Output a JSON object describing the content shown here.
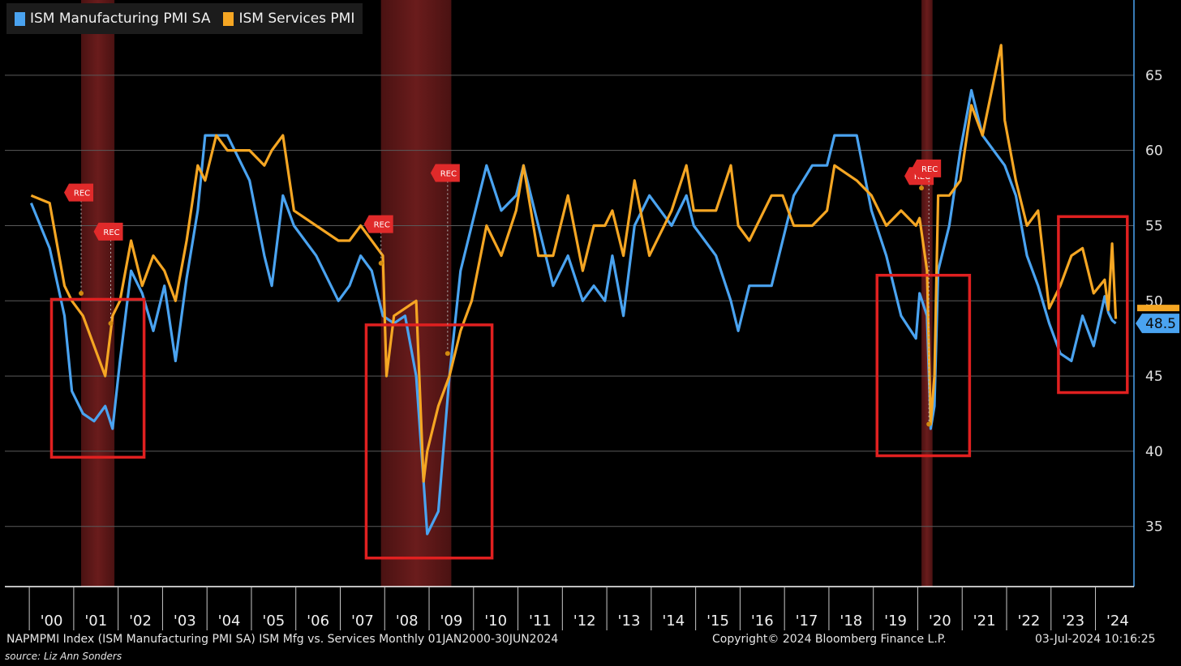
{
  "legend": {
    "items": [
      {
        "label": "ISM Manufacturing PMI SA",
        "color": "#4aa3f0"
      },
      {
        "label": "ISM Services PMI",
        "color": "#f5a623"
      }
    ]
  },
  "footer": {
    "left": "NAPMPMI Index (ISM Manufacturing PMI SA) ISM Mfg vs. Services  Monthly 01JAN2000-30JUN2024",
    "center": "Copyright© 2024 Bloomberg Finance L.P.",
    "right": "03-Jul-2024 10:16:25",
    "source": "source: Liz Ann Sonders"
  },
  "chart_data": {
    "type": "line",
    "x_range": [
      "2000-01",
      "2024-06"
    ],
    "ylim": [
      31,
      70
    ],
    "y_ticks": [
      35,
      40,
      45,
      50,
      55,
      60,
      65
    ],
    "x_tick_labels": [
      "'00",
      "'01",
      "'02",
      "'03",
      "'04",
      "'05",
      "'06",
      "'07",
      "'08",
      "'09",
      "'10",
      "'11",
      "'12",
      "'13",
      "'14",
      "'15",
      "'16",
      "'17",
      "'18",
      "'19",
      "'20",
      "'21",
      "'22",
      "'23",
      "'24"
    ],
    "grid": true,
    "legend_position": "top-left",
    "last_value_label": "48.5",
    "recession_shading": [
      {
        "start": "2001-03",
        "end": "2001-11"
      },
      {
        "start": "2007-12",
        "end": "2009-06"
      },
      {
        "start": "2020-02",
        "end": "2020-04"
      }
    ],
    "rec_flags": [
      "REC",
      "REC",
      "REC",
      "REC",
      "REC",
      "REC"
    ],
    "series": [
      {
        "name": "ISM Manufacturing PMI SA",
        "color": "#4aa3f0",
        "points": [
          [
            "2000-01",
            56.5
          ],
          [
            "2000-06",
            53.5
          ],
          [
            "2000-10",
            49
          ],
          [
            "2000-12",
            44
          ],
          [
            "2001-03",
            42.5
          ],
          [
            "2001-06",
            42
          ],
          [
            "2001-09",
            43
          ],
          [
            "2001-11",
            41.5
          ],
          [
            "2002-01",
            46
          ],
          [
            "2002-04",
            52
          ],
          [
            "2002-07",
            50.5
          ],
          [
            "2002-10",
            48
          ],
          [
            "2003-01",
            51
          ],
          [
            "2003-04",
            46
          ],
          [
            "2003-07",
            51.5
          ],
          [
            "2003-10",
            56
          ],
          [
            "2003-12",
            61
          ],
          [
            "2004-06",
            61
          ],
          [
            "2004-12",
            58
          ],
          [
            "2005-04",
            53
          ],
          [
            "2005-06",
            51
          ],
          [
            "2005-09",
            57
          ],
          [
            "2005-12",
            55
          ],
          [
            "2006-06",
            53
          ],
          [
            "2006-12",
            50
          ],
          [
            "2007-03",
            51
          ],
          [
            "2007-06",
            53
          ],
          [
            "2007-09",
            52
          ],
          [
            "2007-12",
            49
          ],
          [
            "2008-03",
            48.5
          ],
          [
            "2008-06",
            49
          ],
          [
            "2008-09",
            45
          ],
          [
            "2008-11",
            38
          ],
          [
            "2008-12",
            34.5
          ],
          [
            "2009-03",
            36
          ],
          [
            "2009-06",
            45
          ],
          [
            "2009-09",
            52
          ],
          [
            "2009-12",
            55
          ],
          [
            "2010-04",
            59
          ],
          [
            "2010-08",
            56
          ],
          [
            "2010-12",
            57
          ],
          [
            "2011-02",
            59
          ],
          [
            "2011-06",
            55
          ],
          [
            "2011-10",
            51
          ],
          [
            "2012-02",
            53
          ],
          [
            "2012-06",
            50
          ],
          [
            "2012-09",
            51
          ],
          [
            "2012-12",
            50
          ],
          [
            "2013-02",
            53
          ],
          [
            "2013-05",
            49
          ],
          [
            "2013-08",
            55
          ],
          [
            "2013-12",
            57
          ],
          [
            "2014-06",
            55
          ],
          [
            "2014-10",
            57
          ],
          [
            "2014-12",
            55
          ],
          [
            "2015-06",
            53
          ],
          [
            "2015-10",
            50
          ],
          [
            "2015-12",
            48
          ],
          [
            "2016-03",
            51
          ],
          [
            "2016-09",
            51
          ],
          [
            "2016-12",
            54
          ],
          [
            "2017-03",
            57
          ],
          [
            "2017-08",
            59
          ],
          [
            "2017-12",
            59
          ],
          [
            "2018-02",
            61
          ],
          [
            "2018-08",
            61
          ],
          [
            "2018-12",
            56
          ],
          [
            "2019-04",
            53
          ],
          [
            "2019-08",
            49
          ],
          [
            "2019-12",
            47.5
          ],
          [
            "2020-01",
            50.5
          ],
          [
            "2020-03",
            49
          ],
          [
            "2020-04",
            41.5
          ],
          [
            "2020-05",
            43
          ],
          [
            "2020-06",
            52
          ],
          [
            "2020-09",
            55
          ],
          [
            "2020-12",
            60
          ],
          [
            "2021-03",
            64
          ],
          [
            "2021-06",
            61
          ],
          [
            "2021-12",
            59
          ],
          [
            "2022-03",
            57
          ],
          [
            "2022-06",
            53
          ],
          [
            "2022-09",
            51
          ],
          [
            "2022-12",
            48.5
          ],
          [
            "2023-03",
            46.5
          ],
          [
            "2023-06",
            46
          ],
          [
            "2023-09",
            49
          ],
          [
            "2023-12",
            47
          ],
          [
            "2024-03",
            50.3
          ],
          [
            "2024-04",
            49.2
          ],
          [
            "2024-05",
            48.7
          ],
          [
            "2024-06",
            48.5
          ]
        ]
      },
      {
        "name": "ISM Services PMI",
        "color": "#f5a623",
        "points": [
          [
            "2000-01",
            57
          ],
          [
            "2000-06",
            56.5
          ],
          [
            "2000-10",
            51
          ],
          [
            "2000-12",
            50
          ],
          [
            "2001-03",
            49
          ],
          [
            "2001-06",
            47
          ],
          [
            "2001-09",
            45
          ],
          [
            "2001-11",
            49
          ],
          [
            "2002-01",
            50
          ],
          [
            "2002-04",
            54
          ],
          [
            "2002-07",
            51
          ],
          [
            "2002-10",
            53
          ],
          [
            "2003-01",
            52
          ],
          [
            "2003-04",
            50
          ],
          [
            "2003-07",
            54
          ],
          [
            "2003-10",
            59
          ],
          [
            "2003-12",
            58
          ],
          [
            "2004-03",
            61
          ],
          [
            "2004-06",
            60
          ],
          [
            "2004-12",
            60
          ],
          [
            "2005-04",
            59
          ],
          [
            "2005-06",
            60
          ],
          [
            "2005-09",
            61
          ],
          [
            "2005-12",
            56
          ],
          [
            "2006-06",
            55
          ],
          [
            "2006-12",
            54
          ],
          [
            "2007-03",
            54
          ],
          [
            "2007-06",
            55
          ],
          [
            "2007-09",
            54
          ],
          [
            "2007-12",
            53
          ],
          [
            "2008-01",
            45
          ],
          [
            "2008-03",
            49
          ],
          [
            "2008-06",
            49.5
          ],
          [
            "2008-09",
            50
          ],
          [
            "2008-11",
            38
          ],
          [
            "2008-12",
            40
          ],
          [
            "2009-03",
            43
          ],
          [
            "2009-06",
            45
          ],
          [
            "2009-09",
            48
          ],
          [
            "2009-12",
            50
          ],
          [
            "2010-04",
            55
          ],
          [
            "2010-08",
            53
          ],
          [
            "2010-12",
            56
          ],
          [
            "2011-02",
            59
          ],
          [
            "2011-06",
            53
          ],
          [
            "2011-10",
            53
          ],
          [
            "2012-02",
            57
          ],
          [
            "2012-06",
            52
          ],
          [
            "2012-09",
            55
          ],
          [
            "2012-12",
            55
          ],
          [
            "2013-02",
            56
          ],
          [
            "2013-05",
            53
          ],
          [
            "2013-08",
            58
          ],
          [
            "2013-12",
            53
          ],
          [
            "2014-06",
            56
          ],
          [
            "2014-10",
            59
          ],
          [
            "2014-12",
            56
          ],
          [
            "2015-06",
            56
          ],
          [
            "2015-10",
            59
          ],
          [
            "2015-12",
            55
          ],
          [
            "2016-03",
            54
          ],
          [
            "2016-09",
            57
          ],
          [
            "2016-12",
            57
          ],
          [
            "2017-03",
            55
          ],
          [
            "2017-08",
            55
          ],
          [
            "2017-12",
            56
          ],
          [
            "2018-02",
            59
          ],
          [
            "2018-08",
            58
          ],
          [
            "2018-12",
            57
          ],
          [
            "2019-04",
            55
          ],
          [
            "2019-08",
            56
          ],
          [
            "2019-12",
            55
          ],
          [
            "2020-01",
            55.5
          ],
          [
            "2020-03",
            52
          ],
          [
            "2020-04",
            41.8
          ],
          [
            "2020-05",
            45
          ],
          [
            "2020-06",
            57
          ],
          [
            "2020-09",
            57
          ],
          [
            "2020-12",
            58
          ],
          [
            "2021-03",
            63
          ],
          [
            "2021-06",
            61
          ],
          [
            "2021-11",
            67
          ],
          [
            "2021-12",
            62
          ],
          [
            "2022-03",
            58
          ],
          [
            "2022-06",
            55
          ],
          [
            "2022-09",
            56
          ],
          [
            "2022-12",
            49.5
          ],
          [
            "2023-03",
            51
          ],
          [
            "2023-06",
            53
          ],
          [
            "2023-09",
            53.5
          ],
          [
            "2023-12",
            50.5
          ],
          [
            "2024-03",
            51.4
          ],
          [
            "2024-04",
            49.4
          ],
          [
            "2024-05",
            53.8
          ],
          [
            "2024-06",
            48.8
          ]
        ]
      }
    ]
  }
}
